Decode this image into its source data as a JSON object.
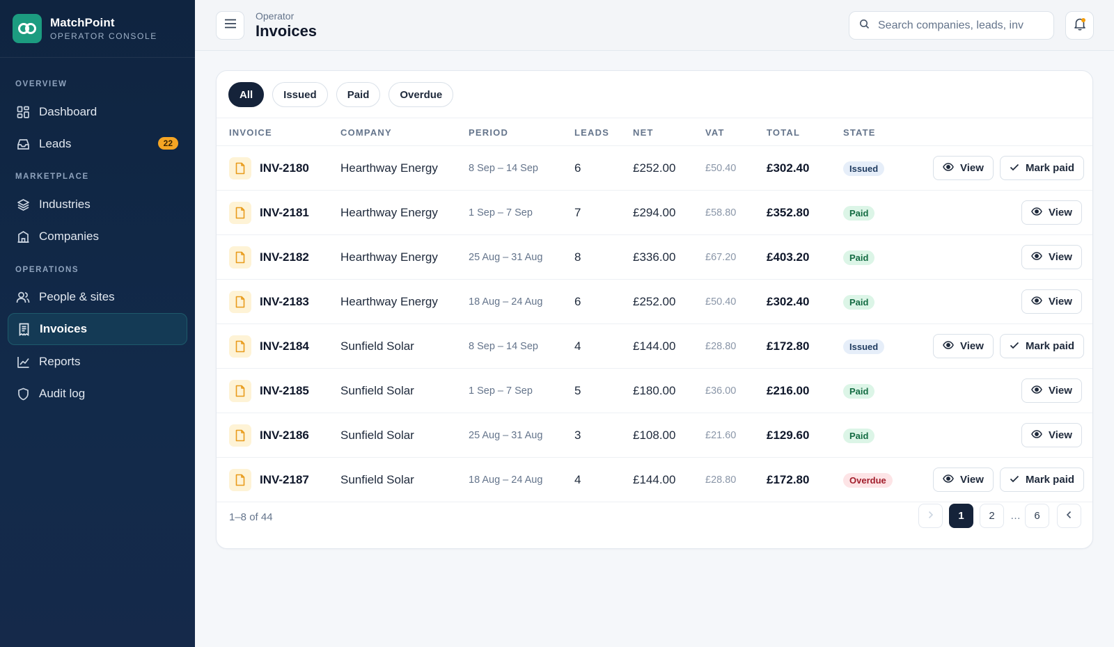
{
  "brand": {
    "name": "MatchPoint",
    "subtitle": "OPERATOR CONSOLE"
  },
  "sidebar": {
    "sections": [
      {
        "label": "OVERVIEW"
      },
      {
        "label": "MARKETPLACE"
      },
      {
        "label": "OPERATIONS"
      }
    ],
    "items": [
      {
        "label": "Dashboard",
        "icon": "dashboard-grid-icon"
      },
      {
        "label": "Leads",
        "icon": "inbox-icon",
        "badge": "22"
      },
      {
        "label": "Industries",
        "icon": "layers-icon"
      },
      {
        "label": "Companies",
        "icon": "building-icon"
      },
      {
        "label": "People & sites",
        "icon": "users-icon"
      },
      {
        "label": "Invoices",
        "icon": "receipt-icon",
        "active": true
      },
      {
        "label": "Reports",
        "icon": "chart-line-icon"
      },
      {
        "label": "Audit log",
        "icon": "shield-icon"
      }
    ]
  },
  "header": {
    "breadcrumb": "Operator",
    "title": "Invoices",
    "search_placeholder": "Search companies, leads, inv"
  },
  "filters": [
    "All",
    "Issued",
    "Paid",
    "Overdue"
  ],
  "active_filter": "All",
  "table": {
    "columns": [
      "INVOICE",
      "COMPANY",
      "PERIOD",
      "LEADS",
      "NET",
      "VAT",
      "TOTAL",
      "STATE"
    ],
    "rows": [
      {
        "invoice": "INV-2180",
        "company": "Hearthway Energy",
        "period": "8 Sep – 14 Sep",
        "leads": "6",
        "net": "£252.00",
        "vat": "£50.40",
        "total": "£302.40",
        "state": "Issued"
      },
      {
        "invoice": "INV-2181",
        "company": "Hearthway Energy",
        "period": "1 Sep – 7 Sep",
        "leads": "7",
        "net": "£294.00",
        "vat": "£58.80",
        "total": "£352.80",
        "state": "Paid"
      },
      {
        "invoice": "INV-2182",
        "company": "Hearthway Energy",
        "period": "25 Aug – 31 Aug",
        "leads": "8",
        "net": "£336.00",
        "vat": "£67.20",
        "total": "£403.20",
        "state": "Paid"
      },
      {
        "invoice": "INV-2183",
        "company": "Hearthway Energy",
        "period": "18 Aug – 24 Aug",
        "leads": "6",
        "net": "£252.00",
        "vat": "£50.40",
        "total": "£302.40",
        "state": "Paid"
      },
      {
        "invoice": "INV-2184",
        "company": "Sunfield Solar",
        "period": "8 Sep – 14 Sep",
        "leads": "4",
        "net": "£144.00",
        "vat": "£28.80",
        "total": "£172.80",
        "state": "Issued"
      },
      {
        "invoice": "INV-2185",
        "company": "Sunfield Solar",
        "period": "1 Sep – 7 Sep",
        "leads": "5",
        "net": "£180.00",
        "vat": "£36.00",
        "total": "£216.00",
        "state": "Paid"
      },
      {
        "invoice": "INV-2186",
        "company": "Sunfield Solar",
        "period": "25 Aug – 31 Aug",
        "leads": "3",
        "net": "£108.00",
        "vat": "£21.60",
        "total": "£129.60",
        "state": "Paid"
      },
      {
        "invoice": "INV-2187",
        "company": "Sunfield Solar",
        "period": "18 Aug – 24 Aug",
        "leads": "4",
        "net": "£144.00",
        "vat": "£28.80",
        "total": "£172.80",
        "state": "Overdue"
      }
    ],
    "actions": {
      "view": "View",
      "mark_paid": "Mark paid"
    }
  },
  "footer": {
    "count": "1–8 of 44",
    "pages": [
      "1",
      "2",
      "…",
      "6"
    ],
    "current_page": "1"
  },
  "colors": {
    "sidebar_bg": "#0f2440",
    "brand_accent": "#1c9c80",
    "badge": "#f5a524",
    "issued": "#1e3a5f",
    "paid": "#146c43",
    "overdue": "#a11d2b"
  }
}
